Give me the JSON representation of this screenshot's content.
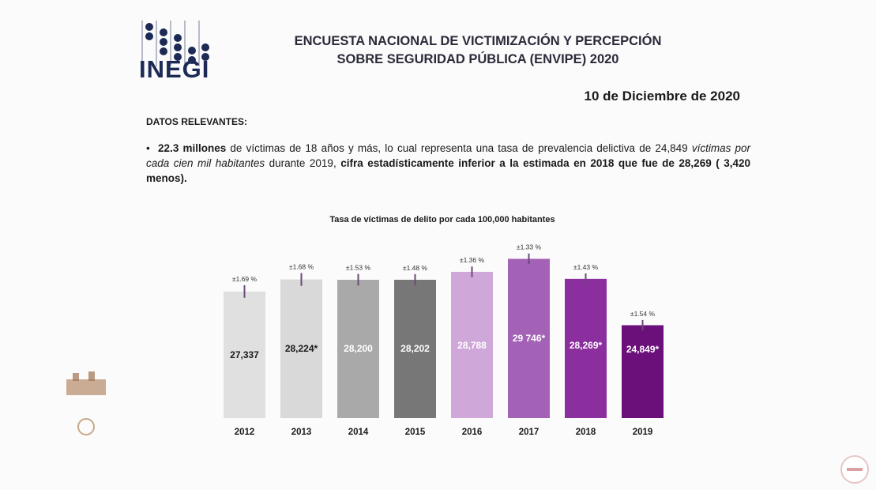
{
  "header": {
    "logo": "INEGI",
    "title_line1": "ENCUESTA NACIONAL DE VICTIMIZACIÓN Y PERCEPCIÓN",
    "title_line2": "SOBRE SEGURIDAD PÚBLICA (ENVIPE) 2020",
    "date": "10 de Diciembre de 2020"
  },
  "section_label": "DATOS RELEVANTES:",
  "bullet": {
    "p1": "22.3 millones",
    "p2": " de víctimas de 18 años y más, lo cual representa una tasa de prevalencia delictiva de 24,849 ",
    "p3": "víctimas por cada cien mil habitantes",
    "p4": " durante 2019, ",
    "p5": "cifra estadísticamente inferior a la estimada en 2018 que fue de 28,269 ( 3,420 menos)."
  },
  "chart_data": {
    "type": "bar",
    "title": "Tasa de víctimas de delito por cada 100,000 habitantes",
    "categories": [
      "2012",
      "2013",
      "2014",
      "2015",
      "2016",
      "2017",
      "2018",
      "2019"
    ],
    "values": [
      27337,
      28224,
      28200,
      28202,
      28788,
      29746,
      28269,
      24849
    ],
    "data_labels": [
      "27,337",
      "28,224*",
      "28,200",
      "28,202",
      "28,788",
      "29 746*",
      "28,269*",
      "24,849*"
    ],
    "error_labels": [
      "±1.69 %",
      "±1.68 %",
      "±1.53 %",
      "±1.48 %",
      "±1.36 %",
      "±1.33 %",
      "±1.43 %",
      "±1.54 %"
    ],
    "error_pct": [
      1.69,
      1.68,
      1.53,
      1.48,
      1.36,
      1.33,
      1.43,
      1.54
    ],
    "colors": [
      "#e0e0e0",
      "#d9d9d9",
      "#a9a9a9",
      "#777777",
      "#cfa8d9",
      "#a462b6",
      "#8b2f9f",
      "#6b107b"
    ],
    "label_colors": [
      "#1a1a1a",
      "#1a1a1a",
      "#ffffff",
      "#ffffff",
      "#ffffff",
      "#ffffff",
      "#ffffff",
      "#ffffff"
    ],
    "ylim": [
      18000,
      31000
    ],
    "grid": false,
    "legend": "none"
  }
}
